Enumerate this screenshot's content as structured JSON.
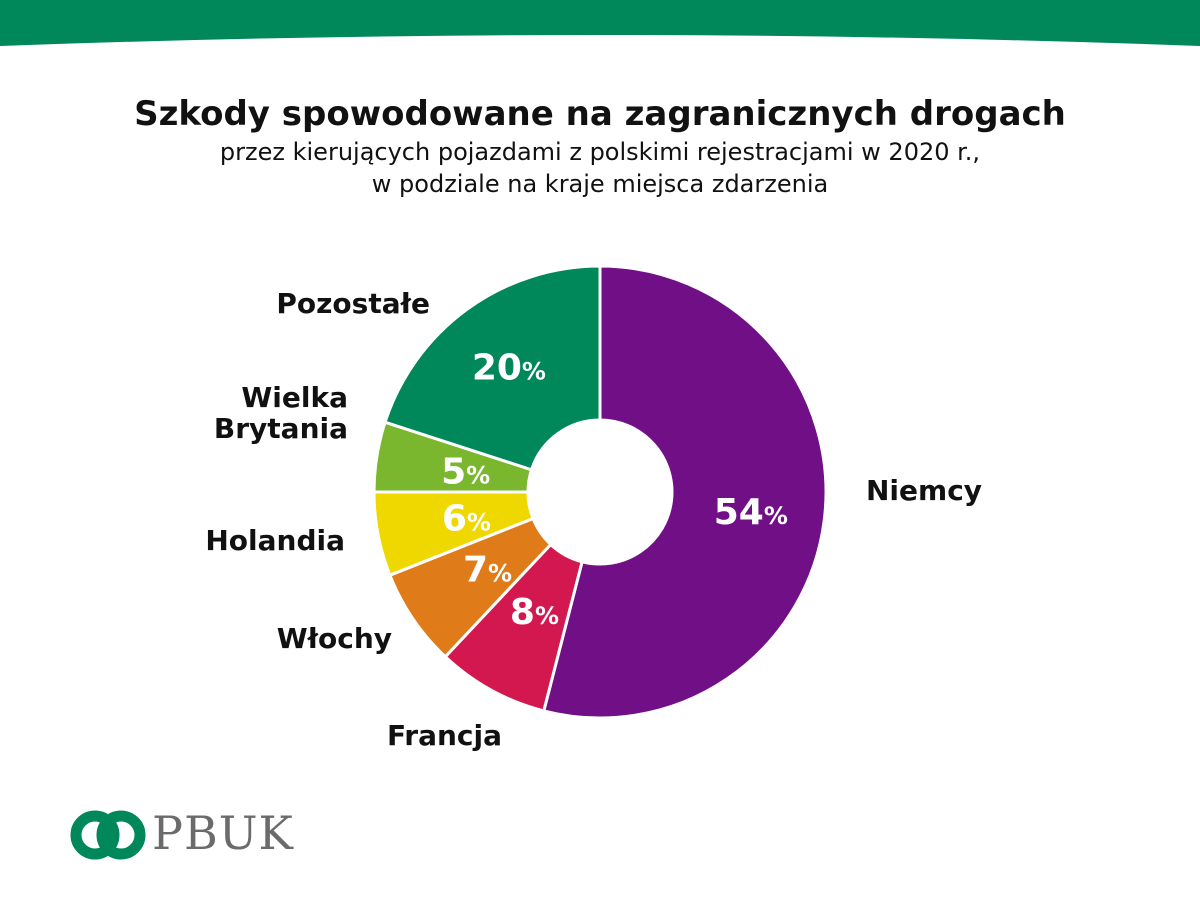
{
  "header": {
    "title": "Szkody spowodowane na zagranicznych drogach",
    "subtitle_line1": "przez kierujących pojazdami z polskimi rejestracjami w 2020 r.,",
    "subtitle_line2": "w podziale na kraje miejsca zdarzenia"
  },
  "brand": {
    "name": "PBUK",
    "logo_icon": "pbuk-rings-logo-icon",
    "color": "#00875a"
  },
  "chart_data": {
    "type": "pie",
    "donut": true,
    "unit": "%",
    "legend": "none",
    "slices": [
      {
        "label": "Niemcy",
        "label_lines": [
          "Niemcy"
        ],
        "value": 54,
        "value_text": "54",
        "color": "#711086"
      },
      {
        "label": "Francja",
        "label_lines": [
          "Francja"
        ],
        "value": 8,
        "value_text": "8",
        "color": "#d3174f"
      },
      {
        "label": "Włochy",
        "label_lines": [
          "Włochy"
        ],
        "value": 7,
        "value_text": "7",
        "color": "#e07b19"
      },
      {
        "label": "Holandia",
        "label_lines": [
          "Holandia"
        ],
        "value": 6,
        "value_text": "6",
        "color": "#eed800"
      },
      {
        "label": "Wielka Brytania",
        "label_lines": [
          "Wielka",
          "Brytania"
        ],
        "value": 5,
        "value_text": "5",
        "color": "#7ab72f"
      },
      {
        "label": "Pozostałe",
        "label_lines": [
          "Pozostałe"
        ],
        "value": 20,
        "value_text": "20",
        "color": "#00875a"
      }
    ]
  }
}
